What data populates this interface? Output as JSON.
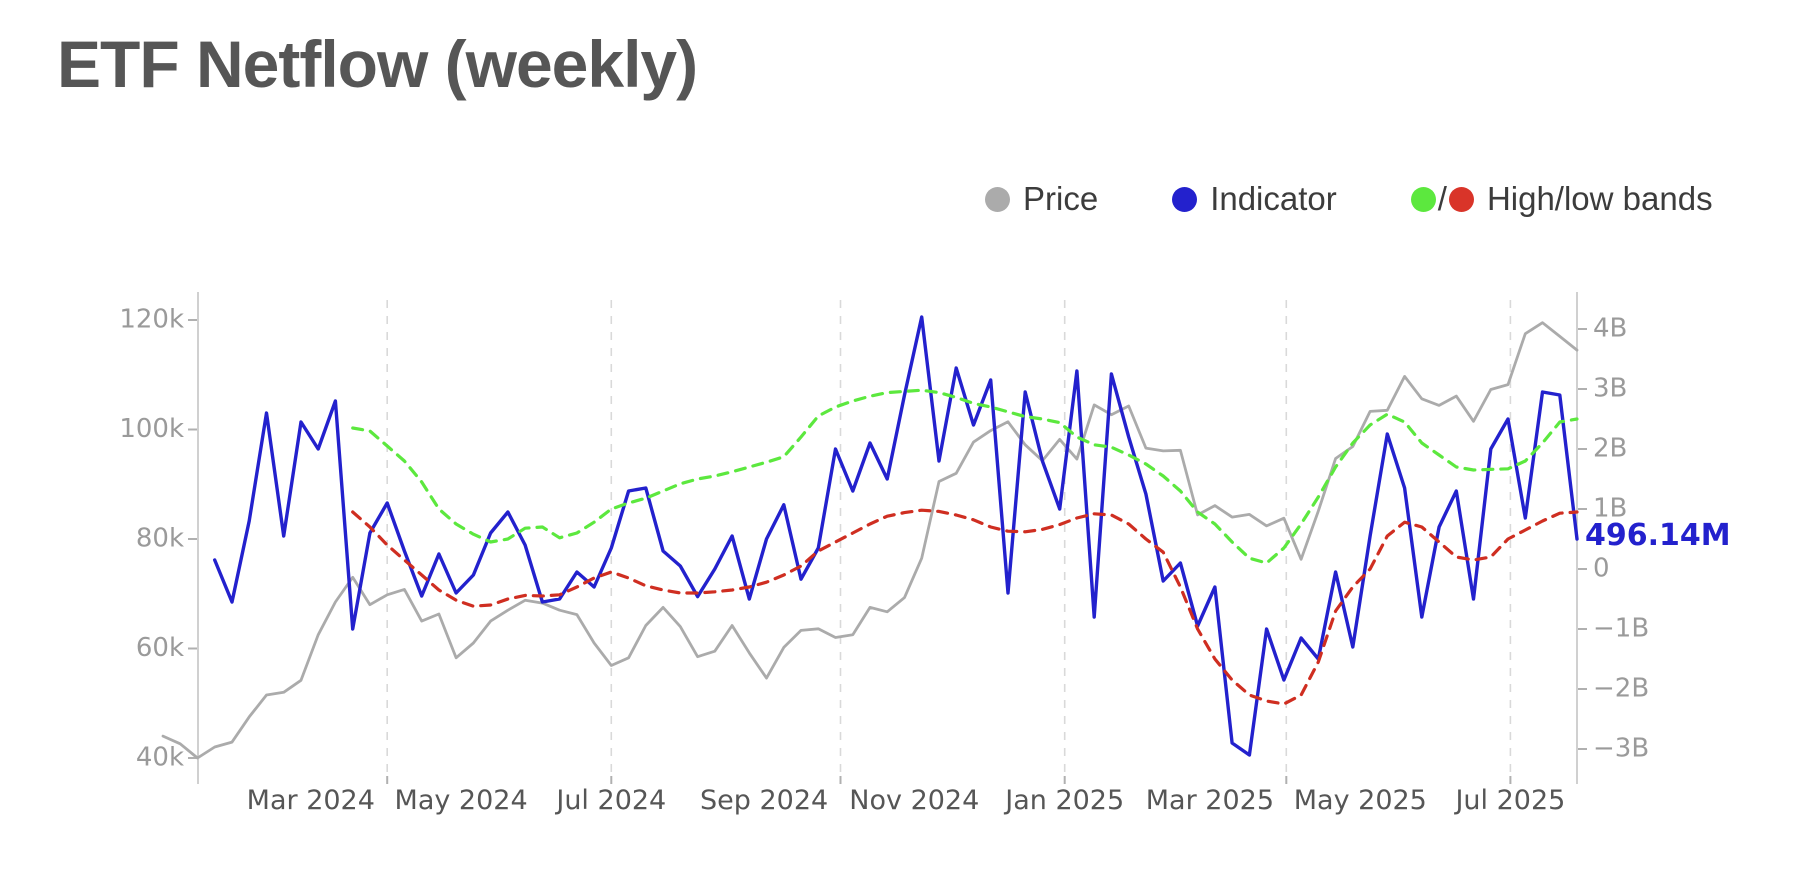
{
  "page": {
    "title": "ETF Netflow (weekly)"
  },
  "legend": {
    "items": [
      {
        "label": "Price",
        "color": "#ababab"
      },
      {
        "label": "Indicator",
        "color": "#2321cd"
      },
      {
        "label": "High/low bands",
        "separator": "/",
        "colors": [
          "#5ce83e",
          "#d93429"
        ]
      }
    ]
  },
  "chart_data": {
    "type": "line",
    "title": "ETF Netflow (weekly)",
    "x_axis": {
      "unit": "week",
      "weeks_total": 82,
      "ticks": [
        {
          "label": "Mar 2024",
          "week": 8.57
        },
        {
          "label": "May 2024",
          "week": 17.29
        },
        {
          "label": "Jul 2024",
          "week": 26.0
        },
        {
          "label": "Sep 2024",
          "week": 34.86
        },
        {
          "label": "Nov 2024",
          "week": 43.57
        },
        {
          "label": "Jan 2025",
          "week": 52.29
        },
        {
          "label": "Mar 2025",
          "week": 60.71
        },
        {
          "label": "May 2025",
          "week": 69.43
        },
        {
          "label": "Jul 2025",
          "week": 78.14
        }
      ],
      "gridline_weeks": [
        13.0,
        26.0,
        39.29,
        52.29,
        65.14,
        78.14
      ],
      "grid": "dashed-vertical"
    },
    "left_axis": {
      "applies_to": "Price",
      "range": [
        36.9,
        129.9
      ],
      "ticks": [
        {
          "label": "120k",
          "value": 120
        },
        {
          "label": "100k",
          "value": 100
        },
        {
          "label": "80k",
          "value": 80
        },
        {
          "label": "60k",
          "value": 60
        },
        {
          "label": "40k",
          "value": 40
        }
      ]
    },
    "right_axis": {
      "applies_to": "Indicator, High/low bands",
      "unit": "B (USD netflow)",
      "range": [
        -3.5,
        4.6
      ],
      "ticks": [
        {
          "label": "4B",
          "value": 4
        },
        {
          "label": "3B",
          "value": 3
        },
        {
          "label": "2B",
          "value": 2
        },
        {
          "label": "1B",
          "value": 1
        },
        {
          "label": "0",
          "value": 0
        },
        {
          "label": "−1B",
          "value": -1
        },
        {
          "label": "−2B",
          "value": -2
        },
        {
          "label": "−3B",
          "value": -3
        }
      ]
    },
    "annotation": {
      "text": "496.14M",
      "value_b": 0.49614,
      "color": "#2321cd"
    },
    "series": [
      {
        "name": "Price",
        "axis": "left",
        "style": "solid",
        "color": "#ababab",
        "width": 2.8,
        "values": [
          44.0,
          42.6,
          40.0,
          42.0,
          42.9,
          47.5,
          51.5,
          52.0,
          54.2,
          62.5,
          68.5,
          73.0,
          68.0,
          69.8,
          70.8,
          65.0,
          66.3,
          58.3,
          61.0,
          65.0,
          67.0,
          68.8,
          68.3,
          67.0,
          66.2,
          61.0,
          56.9,
          58.3,
          64.2,
          67.5,
          64.0,
          58.5,
          59.5,
          64.2,
          59.2,
          54.6,
          60.2,
          63.3,
          63.6,
          62.0,
          62.5,
          67.5,
          66.7,
          69.3,
          76.5,
          90.5,
          92.0,
          97.7,
          99.8,
          101.4,
          97.2,
          94.3,
          98.2,
          94.6,
          104.5,
          102.7,
          104.3,
          96.6,
          96.1,
          96.2,
          84.4,
          86.1,
          84.0,
          84.5,
          82.4,
          83.8,
          76.3,
          85.1,
          94.7,
          96.9,
          103.3,
          103.5,
          109.7,
          105.6,
          104.4,
          106.1,
          101.5,
          107.3,
          108.2,
          117.5,
          119.5,
          117.0,
          114.5
        ]
      },
      {
        "name": "Indicator",
        "axis": "right",
        "style": "solid",
        "color": "#2321cd",
        "width": 3.4,
        "values": [
          null,
          null,
          null,
          0.15,
          -0.55,
          0.8,
          2.6,
          0.55,
          2.45,
          2.0,
          2.8,
          -1.0,
          0.6,
          1.1,
          0.3,
          -0.45,
          0.25,
          -0.4,
          -0.1,
          0.6,
          0.95,
          0.4,
          -0.55,
          -0.5,
          -0.05,
          -0.3,
          0.35,
          1.3,
          1.35,
          0.3,
          0.05,
          -0.46,
          0.0,
          0.55,
          -0.5,
          0.5,
          1.07,
          -0.17,
          0.35,
          2.0,
          1.3,
          2.1,
          1.5,
          2.9,
          4.2,
          1.8,
          3.35,
          2.4,
          3.15,
          -0.4,
          2.95,
          1.8,
          1.0,
          3.3,
          -0.8,
          3.25,
          2.2,
          1.25,
          -0.2,
          0.1,
          -0.95,
          -0.3,
          -2.9,
          -3.1,
          -1.0,
          -1.85,
          -1.15,
          -1.5,
          -0.05,
          -1.3,
          0.55,
          2.25,
          1.35,
          -0.8,
          0.7,
          1.3,
          -0.5,
          2.0,
          2.5,
          0.85,
          2.95,
          2.9,
          0.5
        ]
      },
      {
        "name": "High band",
        "axis": "right",
        "style": "dashed",
        "color": "#5ce83e",
        "width": 3.2,
        "values": [
          null,
          null,
          null,
          null,
          null,
          null,
          null,
          null,
          null,
          null,
          null,
          2.35,
          2.3,
          2.05,
          1.8,
          1.45,
          1.0,
          0.75,
          0.58,
          0.45,
          0.5,
          0.68,
          0.7,
          0.52,
          0.6,
          0.78,
          1.0,
          1.1,
          1.18,
          1.3,
          1.42,
          1.5,
          1.55,
          1.62,
          1.7,
          1.78,
          1.87,
          2.2,
          2.55,
          2.7,
          2.8,
          2.88,
          2.94,
          2.96,
          2.98,
          2.94,
          2.86,
          2.76,
          2.7,
          2.62,
          2.54,
          2.5,
          2.44,
          2.2,
          2.07,
          2.03,
          1.9,
          1.75,
          1.55,
          1.3,
          0.95,
          0.75,
          0.45,
          0.18,
          0.1,
          0.35,
          0.75,
          1.2,
          1.7,
          2.1,
          2.4,
          2.58,
          2.45,
          2.1,
          1.9,
          1.7,
          1.65,
          1.66,
          1.67,
          1.8,
          2.1,
          2.45,
          2.5
        ]
      },
      {
        "name": "Low band",
        "axis": "right",
        "style": "dashed",
        "color": "#cf2e21",
        "width": 3.2,
        "values": [
          null,
          null,
          null,
          null,
          null,
          null,
          null,
          null,
          null,
          null,
          null,
          0.95,
          0.7,
          0.4,
          0.15,
          -0.1,
          -0.35,
          -0.52,
          -0.62,
          -0.6,
          -0.5,
          -0.44,
          -0.45,
          -0.43,
          -0.3,
          -0.15,
          -0.05,
          -0.15,
          -0.28,
          -0.35,
          -0.4,
          -0.4,
          -0.38,
          -0.35,
          -0.3,
          -0.22,
          -0.1,
          0.05,
          0.3,
          0.45,
          0.6,
          0.75,
          0.88,
          0.94,
          0.98,
          0.96,
          0.9,
          0.82,
          0.7,
          0.63,
          0.62,
          0.66,
          0.74,
          0.85,
          0.92,
          0.9,
          0.75,
          0.5,
          0.28,
          -0.3,
          -1.0,
          -1.5,
          -1.85,
          -2.1,
          -2.2,
          -2.25,
          -2.1,
          -1.55,
          -0.7,
          -0.3,
          0.0,
          0.55,
          0.78,
          0.7,
          0.45,
          0.2,
          0.15,
          0.2,
          0.5,
          0.65,
          0.8,
          0.93,
          0.95
        ]
      }
    ]
  }
}
